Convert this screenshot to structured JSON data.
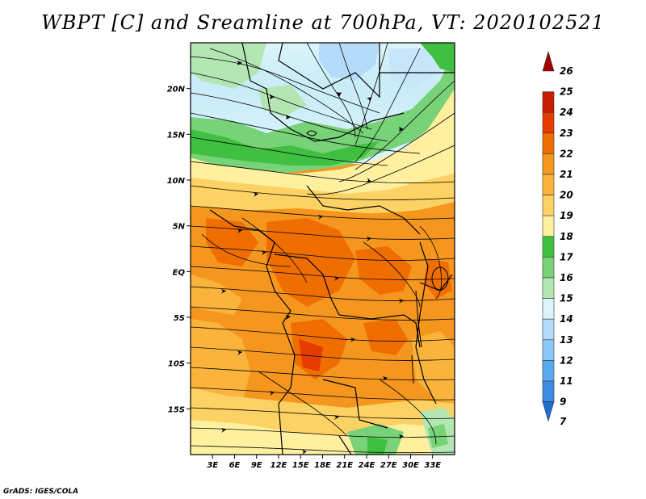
{
  "title": "WBPT [C] and Sreamline at 700hPa, VT: 2020102521",
  "credit": "GrADS: IGES/COLA",
  "map": {
    "lon_range": [
      0,
      36
    ],
    "lat_range": [
      -20,
      25
    ],
    "lat_ticks": [
      {
        "lat": 20,
        "label": "20N"
      },
      {
        "lat": 15,
        "label": "15N"
      },
      {
        "lat": 10,
        "label": "10N"
      },
      {
        "lat": 5,
        "label": "5N"
      },
      {
        "lat": 0,
        "label": "EQ"
      },
      {
        "lat": -5,
        "label": "5S"
      },
      {
        "lat": -10,
        "label": "10S"
      },
      {
        "lat": -15,
        "label": "15S"
      }
    ],
    "lon_ticks": [
      {
        "lon": 3,
        "label": "3E"
      },
      {
        "lon": 6,
        "label": "6E"
      },
      {
        "lon": 9,
        "label": "9E"
      },
      {
        "lon": 12,
        "label": "12E"
      },
      {
        "lon": 15,
        "label": "15E"
      },
      {
        "lon": 18,
        "label": "18E"
      },
      {
        "lon": 21,
        "label": "21E"
      },
      {
        "lon": 24,
        "label": "24E"
      },
      {
        "lon": 27,
        "label": "27E"
      },
      {
        "lon": 30,
        "label": "30E"
      },
      {
        "lon": 33,
        "label": "33E"
      }
    ]
  },
  "colorbar": {
    "labels": [
      "26",
      "25",
      "24",
      "23",
      "22",
      "21",
      "20",
      "19",
      "18",
      "17",
      "16",
      "15",
      "14",
      "13",
      "12",
      "11",
      "9",
      "7"
    ],
    "colors": [
      "#a50000",
      "#c81e00",
      "#e63c00",
      "#f06e00",
      "#f5961e",
      "#fab43c",
      "#fcd264",
      "#fff0a0",
      "#40c040",
      "#78d278",
      "#b4e6b4",
      "#dcf5fa",
      "#b4dcfa",
      "#8cc8f5",
      "#5aaaf0",
      "#3c8ce6",
      "#1e6ed2"
    ]
  }
}
